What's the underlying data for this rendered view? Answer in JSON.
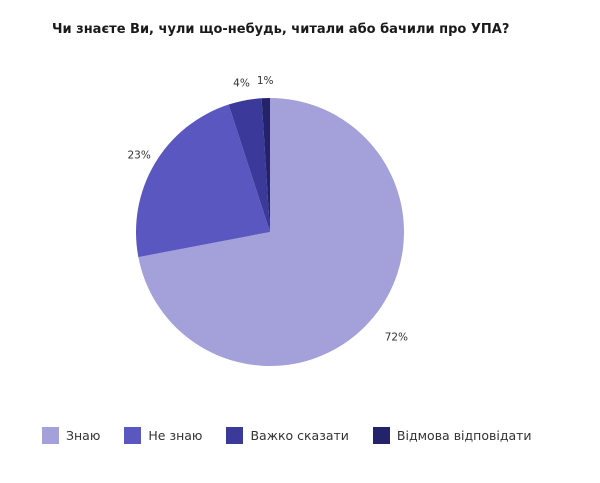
{
  "chart_data": {
    "type": "pie",
    "title": "Чи знаєте Ви, чули що-небудь, читали або бачили про УПА?",
    "categories": [
      "Знаю",
      "Не знаю",
      "Важко сказати",
      "Відмова відповідати"
    ],
    "values": [
      72,
      23,
      4,
      1
    ],
    "labels": [
      "72%",
      "23%",
      "4%",
      "1%"
    ],
    "colors": [
      "#a3a0da",
      "#5a58c0",
      "#3b3a9a",
      "#23226a"
    ],
    "legend_position": "bottom"
  }
}
